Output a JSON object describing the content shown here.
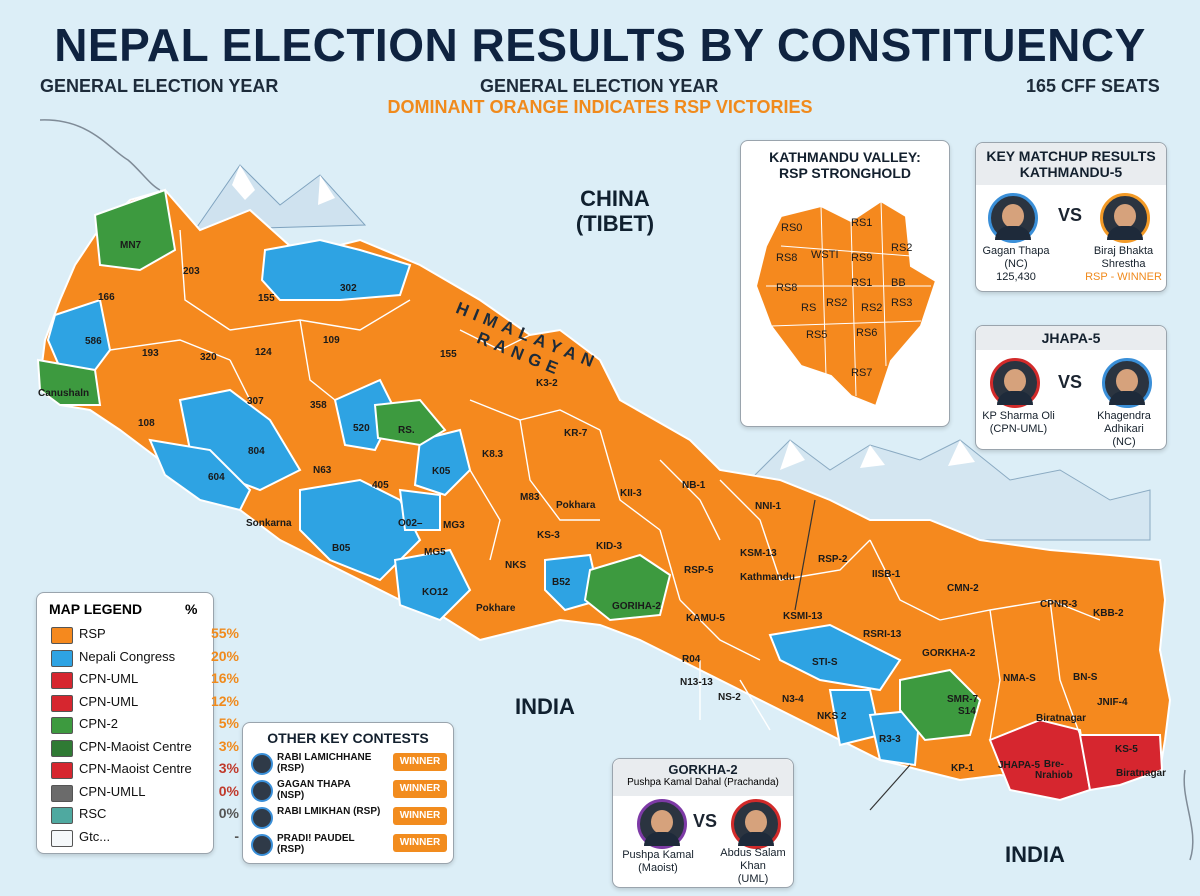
{
  "header": {
    "title": "NEPAL ELECTION RESULTS BY CONSTITUENCY",
    "sub_left": "GENERAL ELECTION YEAR",
    "sub_center": "GENERAL ELECTION YEAR",
    "sub_right": "165 CFF SEATS",
    "sub_orange": "DOMINANT ORANGE INDICATES RSP VICTORIES"
  },
  "colors": {
    "rsp": "#f5891e",
    "nc": "#2ea3e3",
    "uml": "#d6262f",
    "maoist": "#3d9a3f",
    "gray": "#6b6b6b",
    "teal": "#4fa9a0",
    "white": "#f5f8fa"
  },
  "map_labels": {
    "china": "CHINA\n(TIBET)",
    "himalaya": "HIMALAYAN RANGE",
    "india_center": "INDIA",
    "india_right": "INDIA"
  },
  "regions": [
    "MN7",
    "203",
    "166",
    "155",
    "302",
    "586",
    "193",
    "320",
    "124",
    "109",
    "155",
    "Canushaln",
    "108",
    "307",
    "358",
    "520",
    "RS.",
    "804",
    "604",
    "N63",
    "405",
    "K05",
    "K8.3",
    "KR-7",
    "K3-2",
    "M83",
    "Pokhara",
    "KII-3",
    "NB-1",
    "Sonkarna",
    "O02–",
    "B05",
    "MG3",
    "KS-3",
    "KID-3",
    "MG5",
    "NKS",
    "Pokhare",
    "KO12",
    "B52",
    "GORIHA-2",
    "RSP-5",
    "NNI-1",
    "KSM-13",
    "RSP-2",
    "Kathmandu",
    "KAMU-5",
    "KSMI-13",
    "IISB-1",
    "CMN-2",
    "CPNR-3",
    "KBB-2",
    "R04",
    "RSRI-13",
    "GORKHA-2",
    "STI-S",
    "N13-13",
    "NS-2",
    "N3-4",
    "NKS 2",
    "R3-3",
    "SMR-7",
    "NMA-S",
    "BN-S",
    "JNIF-4",
    "S14",
    "Biratnagar",
    "KS-5",
    "KP-1",
    "JHAPA-5",
    "Bre-\nNrahiob",
    "Biratnagar"
  ],
  "valley": {
    "title_line1": "KATHMANDU VALLEY:",
    "title_line2": "RSP STRONGHOLD",
    "labels": [
      "RS0",
      "RS1",
      "RS8",
      "WSTI",
      "RS9",
      "RS2",
      "RS8",
      "RS1",
      "BB",
      "RS",
      "RS2",
      "RS2",
      "RS3",
      "RS5",
      "RS6",
      "RS7"
    ]
  },
  "matchup": {
    "title_line1": "KEY MATCHUP RESULTS",
    "title_line2": "KATHMANDU-5",
    "vs": "VS",
    "cand1": {
      "name1": "Gagan Thapa",
      "name2": "(NC)",
      "votes": "125,430"
    },
    "cand2": {
      "name1": "Biraj Bhakta",
      "name2": "Shrestha",
      "result": "RSP - WINNER"
    }
  },
  "jhapa": {
    "title": "JHAPA-5",
    "vs": "VS",
    "cand1": {
      "name1": "KP Sharma Oli",
      "name2": "(CPN-UML)"
    },
    "cand2": {
      "name1": "Khagendra",
      "name2": "Adhikari",
      "name3": "(NC)"
    }
  },
  "gorkha": {
    "title": "GORKHA-2",
    "subtitle": "Pushpa Kamal Dahal (Prachanda)",
    "vs": "VS",
    "cand1": {
      "name1": "Pushpa Kamal",
      "name2": "(Maoist)"
    },
    "cand2": {
      "name1": "Abdus Salam",
      "name2": "Khan",
      "name3": "(UML)"
    }
  },
  "legend": {
    "title": "MAP LEGEND",
    "pct_header": "%",
    "items": [
      {
        "label": "RSP",
        "pct": "55%",
        "color": "#f5891e",
        "pct_color": "#f08a1c"
      },
      {
        "label": "Nepali Congress",
        "pct": "20%",
        "color": "#2ea3e3",
        "pct_color": "#f08a1c"
      },
      {
        "label": "CPN-UML",
        "pct": "16%",
        "color": "#d6262f",
        "pct_color": "#f08a1c"
      },
      {
        "label": "CPN-UML",
        "pct": "12%",
        "color": "#d6262f",
        "pct_color": "#f08a1c"
      },
      {
        "label": "CPN-2",
        "pct": "5%",
        "color": "#3d9a3f",
        "pct_color": "#f08a1c"
      },
      {
        "label": "CPN-Maoist Centre",
        "pct": "3%",
        "color": "#2f7a34",
        "pct_color": "#f08a1c"
      },
      {
        "label": "CPN-Maoist Centre",
        "pct": "3%",
        "color": "#d6262f",
        "pct_color": "#c0392b"
      },
      {
        "label": "CPN-UMLL",
        "pct": "0%",
        "color": "#6b6b6b",
        "pct_color": "#c0392b"
      },
      {
        "label": "RSC",
        "pct": "0%",
        "color": "#4fa9a0",
        "pct_color": "#555555"
      },
      {
        "label": "Gtc...",
        "pct": "-",
        "color": "#f5f8fa",
        "pct_color": "#555555"
      }
    ]
  },
  "contests": {
    "title": "OTHER KEY CONTESTS",
    "rows": [
      {
        "name1": "RABI LAMICHHANE",
        "name2": "(RSP)",
        "badge": "WINNER"
      },
      {
        "name1": "GAGAN THAPA",
        "name2": "(NSP)",
        "badge": "WINNER"
      },
      {
        "name1": "RABI LMIKHAN (RSP)",
        "name2": "",
        "badge": "WINNER"
      },
      {
        "name1": "PRADI! PAUDEL",
        "name2": "(RSP)",
        "badge": "WINNER"
      }
    ]
  }
}
